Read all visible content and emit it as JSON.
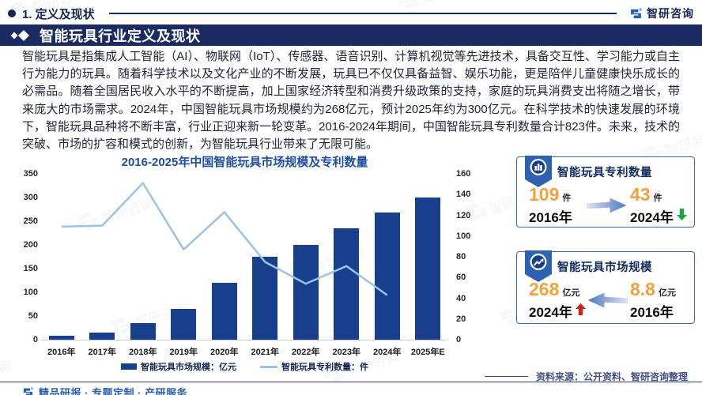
{
  "header": {
    "section_label": "1. 定义及现状",
    "brand_name": "智研咨询",
    "banner_title": "智能玩具行业定义及现状"
  },
  "body": {
    "paragraph": "智能玩具是指集成人工智能（AI）、物联网（IoT）、传感器、语音识别、计算机视觉等先进技术，具备交互性、学习能力或自主行为能力的玩具。随着科学技术以及文化产业的不断发展，玩具已不仅仅具备益智、娱乐功能，更是陪伴儿童健康快乐成长的必需品。随着全国居民收入水平的不断提高，加上国家经济转型和消费升级政策的支持，家庭的玩具消费支出将随之增长，带来庞大的市场需求。2024年，中国智能玩具市场规模约为268亿元，预计2025年约为300亿元。在科学技术的快速发展的环境下，智能玩具品种将不断丰富，行业正迎来新一轮变革。2016-2024年期间，中国智能玩具专利数量合计823件。未来，技术的突破、市场的扩容和模式的创新，为智能玩具行业带来了无限可能。"
  },
  "chart_data": {
    "type": "bar+line",
    "title": "2016-2025年中国智能玩具市场规模及专利数量",
    "categories": [
      "2016年",
      "2017年",
      "2018年",
      "2019年",
      "2020年",
      "2021年",
      "2022年",
      "2023年",
      "2024年",
      "2025年E"
    ],
    "series": [
      {
        "name": "智能玩具市场规模：亿元",
        "type": "bar",
        "axis": "left",
        "color": "#173f8c",
        "values": [
          8.8,
          15,
          35,
          65,
          120,
          175,
          200,
          235,
          268,
          300
        ]
      },
      {
        "name": "智能玩具专利数量：件",
        "type": "line",
        "axis": "right",
        "color": "#9cc3e3",
        "values": [
          109,
          110,
          151,
          87,
          123,
          75,
          54,
          71,
          43,
          null
        ]
      }
    ],
    "left_axis": {
      "min": 0,
      "max": 350,
      "step": 50
    },
    "right_axis": {
      "min": 0,
      "max": 160,
      "step": 20
    },
    "grid": false,
    "legend_position": "bottom"
  },
  "cards": [
    {
      "title": "智能玩具专利数量",
      "icon": "bar-chart-badge",
      "arrow_direction": "right",
      "left": {
        "value": "109",
        "unit": "件",
        "year": "2016年",
        "trend": null
      },
      "right": {
        "value": "43",
        "unit": "件",
        "year": "2024年",
        "trend": "down"
      }
    },
    {
      "title": "智能玩具市场规模",
      "icon": "trend-chart-badge",
      "arrow_direction": "left",
      "left": {
        "value": "268",
        "unit": "亿元",
        "year": "2024年",
        "trend": "up"
      },
      "right": {
        "value": "8.8",
        "unit": "亿元",
        "year": "2016年",
        "trend": null
      }
    }
  ],
  "source_note": "资料来源：公开资料、智研咨询整理",
  "footer": {
    "tagline": "精品研报 · 专题定制 · 产研服务"
  },
  "colors": {
    "banner_bg": "#1a2a63",
    "accent_navy": "#17264f",
    "title_blue": "#1e4fa2",
    "bar_color": "#173f8c",
    "line_color": "#9cc3e3",
    "value_orange": "#f2a23b",
    "card_border": "#3a6bb5",
    "trend_up": "#cf1f1f",
    "trend_down": "#1fa24a",
    "footer_blue": "#2a5fae"
  }
}
